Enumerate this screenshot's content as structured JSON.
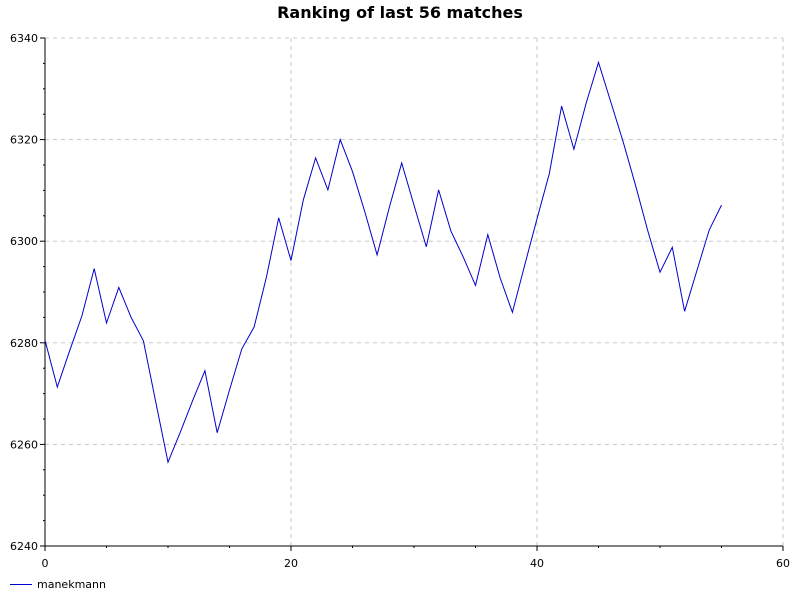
{
  "chart_data": {
    "type": "line",
    "title": "Ranking of last 56 matches",
    "xlabel": "",
    "ylabel": "",
    "xlim": [
      0,
      60
    ],
    "ylim": [
      6240,
      6340
    ],
    "xticks": [
      0,
      20,
      40,
      60
    ],
    "yticks": [
      6240,
      6260,
      6280,
      6300,
      6320,
      6340
    ],
    "grid": true,
    "legend_position": "bottom-left",
    "series": [
      {
        "name": "manekmann",
        "color": "#0000cc",
        "x": [
          0,
          1,
          2,
          3,
          4,
          5,
          6,
          7,
          8,
          9,
          10,
          11,
          12,
          13,
          14,
          15,
          16,
          17,
          18,
          19,
          20,
          21,
          22,
          23,
          24,
          25,
          26,
          27,
          28,
          29,
          30,
          31,
          32,
          33,
          34,
          35,
          36,
          37,
          38,
          39,
          40,
          41,
          42,
          43,
          44,
          45,
          46,
          47,
          48,
          49,
          50,
          51,
          52,
          53,
          54,
          55
        ],
        "values": [
          6280.5,
          6271.3,
          6278.4,
          6285.3,
          6294.6,
          6283.9,
          6290.9,
          6285.0,
          6280.4,
          6268.4,
          6256.5,
          6262.4,
          6268.6,
          6274.5,
          6262.3,
          6270.7,
          6278.8,
          6283.1,
          6292.9,
          6304.6,
          6296.2,
          6308.1,
          6316.4,
          6310.1,
          6320.0,
          6313.7,
          6305.8,
          6297.3,
          6306.7,
          6315.4,
          6307.1,
          6298.9,
          6310.1,
          6302.0,
          6296.9,
          6291.3,
          6301.3,
          6292.8,
          6286.0,
          6295.3,
          6304.4,
          6313.3,
          6326.6,
          6318.1,
          6327.2,
          6335.2,
          6327.4,
          6319.6,
          6311.1,
          6302.1,
          6293.9,
          6298.8,
          6286.2,
          6294.2,
          6302.2,
          6307.1
        ]
      }
    ]
  }
}
